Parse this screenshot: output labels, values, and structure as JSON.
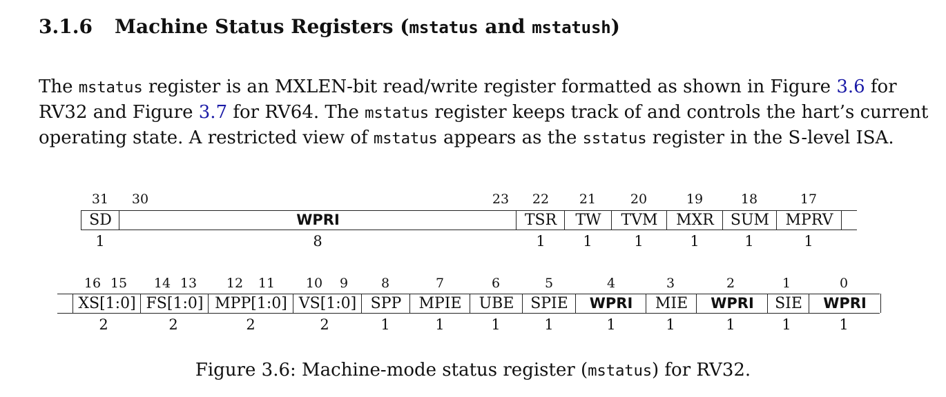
{
  "section": {
    "number": "3.1.6",
    "title_pre": "Machine Status Registers (",
    "title_code1": "mstatus",
    "title_mid": " and ",
    "title_code2": "mstatush",
    "title_post": ")"
  },
  "paragraph": {
    "l1_a": "The ",
    "l1_code": "mstatus",
    "l1_b": " register is an MXLEN-bit read/write register formatted as shown in Figure ",
    "l1_ref": "3.6",
    "l1_c": " for",
    "l2_a": "RV32 and Figure ",
    "l2_ref": "3.7",
    "l2_b": " for RV64.  The ",
    "l2_code": "mstatus",
    "l2_c": " register keeps track of and controls the hart’s current",
    "l3_a": "operating state.  A restricted view of ",
    "l3_code1": "mstatus",
    "l3_b": " appears as the ",
    "l3_code2": "sstatus",
    "l3_c": " register in the S-level ISA."
  },
  "figure": {
    "row1": {
      "bits": [
        "31",
        "30",
        "23",
        "22",
        "21",
        "20",
        "19",
        "18",
        "17"
      ],
      "fields": [
        "SD",
        "WPRI",
        "TSR",
        "TW",
        "TVM",
        "MXR",
        "SUM",
        "MPRV"
      ],
      "widths": [
        "1",
        "8",
        "1",
        "1",
        "1",
        "1",
        "1",
        "1"
      ]
    },
    "row2": {
      "bits": [
        "16",
        "15",
        "14",
        "13",
        "12",
        "11",
        "10",
        "9",
        "8",
        "7",
        "6",
        "5",
        "4",
        "3",
        "2",
        "1",
        "0"
      ],
      "fields": [
        "XS[1:0]",
        "FS[1:0]",
        "MPP[1:0]",
        "VS[1:0]",
        "SPP",
        "MPIE",
        "UBE",
        "SPIE",
        "WPRI",
        "MIE",
        "WPRI",
        "SIE",
        "WPRI"
      ],
      "widths": [
        "2",
        "2",
        "2",
        "2",
        "1",
        "1",
        "1",
        "1",
        "1",
        "1",
        "1",
        "1",
        "1"
      ]
    },
    "caption_a": "Figure 3.6: Machine-mode status register (",
    "caption_code": "mstatus",
    "caption_b": ") for RV32."
  }
}
